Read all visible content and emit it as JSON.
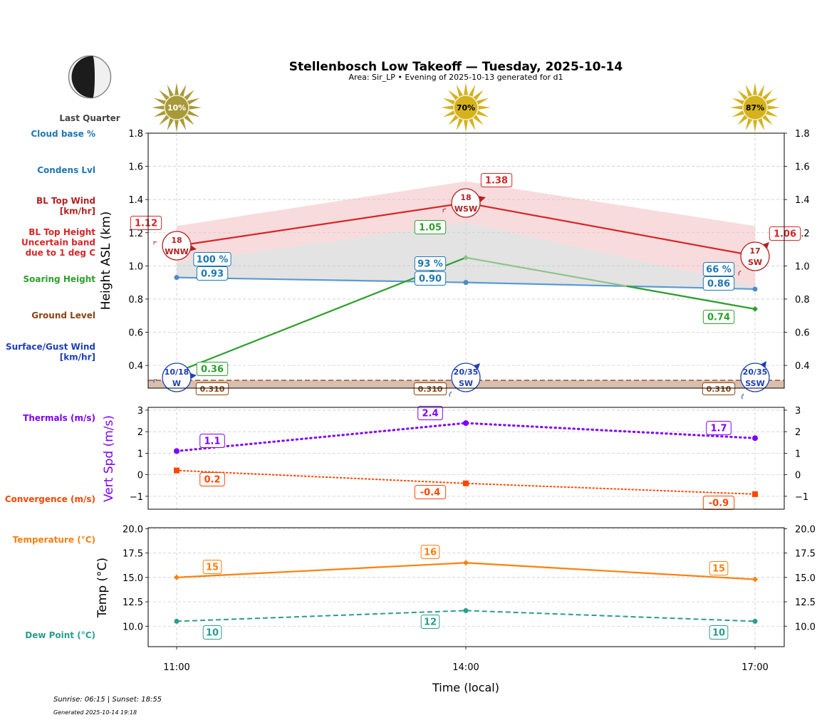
{
  "title": "Stellenbosch Low Takeoff — Tuesday, 2025-10-14",
  "subtitle": "Area: Sir_LP • Evening of 2025-10-13 generated for d1",
  "moon": {
    "phase": "Last Quarter",
    "icon": "moon-last-quarter-icon"
  },
  "footer": {
    "sun_times": "Sunrise: 06:15 | Sunset: 18:55",
    "generated": "Generated 2025-10-14 19:18"
  },
  "colors": {
    "cloud_base": "#1f77b4",
    "bl_top_wind": "#b22222",
    "bl_top_height": "#d62728",
    "soaring": "#2ca02c",
    "ground": "#8b4513",
    "surface_wind": "#1f3fb4",
    "thermals": "#7f00ff",
    "convergence": "#ff4500",
    "temperature": "#ff7f0e",
    "dew_point": "#2a9d8f"
  },
  "chart_data": [
    {
      "type": "line",
      "name": "height-panel",
      "ylabel": "Height ASL (km)",
      "ylim": [
        0.263,
        1.8
      ],
      "yticks": [
        "0.4",
        "0.6",
        "0.8",
        "1.0",
        "1.2",
        "1.4",
        "1.6",
        "1.8"
      ],
      "ytick_values": [
        0.4,
        0.6,
        0.8,
        1.0,
        1.2,
        1.4,
        1.6,
        1.8
      ],
      "grid": true,
      "x": [
        "11:00",
        "14:00",
        "17:00"
      ],
      "sun_percent": [
        "10%",
        "70%",
        "87%"
      ],
      "sun_values": [
        10,
        70,
        87
      ],
      "legend_labels": {
        "cloud_base": "Cloud base %",
        "condens": "Condens Lvl",
        "bl_top_wind": "BL Top Wind\n[km/hr]",
        "bl_top_wind_lines": [
          "BL Top Wind",
          "[km/hr]"
        ],
        "bl_top_height_lines": [
          "BL Top Height",
          "Uncertain band",
          "due to 1 deg C"
        ],
        "soaring": "Soaring Height",
        "ground": "Ground Level",
        "surface_wind_lines": [
          "Surface/Gust Wind",
          "[km/hr]"
        ]
      },
      "series": [
        {
          "name": "BL Top Height",
          "values": [
            1.12,
            1.38,
            1.06
          ],
          "labels": [
            "1.12",
            "1.38",
            "1.06"
          ],
          "band_upper": [
            1.24,
            1.51,
            1.24
          ],
          "band_lower": [
            1.02,
            1.26,
            0.88
          ]
        },
        {
          "name": "Condensation Level",
          "values": [
            0.93,
            0.9,
            0.86
          ],
          "labels": [
            "0.93",
            "0.90",
            "0.86"
          ],
          "cloud_pct": [
            "100 %",
            "93 %",
            "66 %"
          ]
        },
        {
          "name": "Soaring Height",
          "values": [
            0.36,
            1.05,
            0.74
          ],
          "labels": [
            "0.36",
            "1.05",
            "0.74"
          ]
        },
        {
          "name": "Ground Level",
          "values": [
            0.31,
            0.31,
            0.31
          ],
          "labels": [
            "0.310",
            "0.310",
            "0.310"
          ]
        }
      ],
      "bl_wind": [
        {
          "speed": "18",
          "dir": "WNW"
        },
        {
          "speed": "18",
          "dir": "WSW"
        },
        {
          "speed": "17",
          "dir": "SW"
        }
      ],
      "surface_wind": [
        {
          "speed": "10/18",
          "dir": "W"
        },
        {
          "speed": "20/35",
          "dir": "SW"
        },
        {
          "speed": "20/35",
          "dir": "SSW"
        }
      ]
    },
    {
      "type": "line",
      "name": "vert-speed-panel",
      "ylabel": "Vert Spd (m/s)",
      "ylim": [
        -1.6,
        3.13
      ],
      "yticks": [
        "−1",
        "0",
        "1",
        "2",
        "3"
      ],
      "ytick_values": [
        -1,
        0,
        1,
        2,
        3
      ],
      "grid": true,
      "x": [
        "11:00",
        "14:00",
        "17:00"
      ],
      "series": [
        {
          "name": "Thermals (m/s)",
          "values": [
            1.1,
            2.4,
            1.7
          ],
          "labels": [
            "1.1",
            "2.4",
            "1.7"
          ]
        },
        {
          "name": "Convergence (m/s)",
          "values": [
            0.2,
            -0.4,
            -0.9
          ],
          "labels": [
            "0.2",
            "-0.4",
            "-0.9"
          ]
        }
      ]
    },
    {
      "type": "line",
      "name": "temperature-panel",
      "ylabel": "Temp (°C)",
      "xlabel": "Time (local)",
      "ylim": [
        7.9,
        20.1
      ],
      "yticks": [
        "10.0",
        "12.5",
        "15.0",
        "17.5",
        "20.0"
      ],
      "ytick_values": [
        10,
        12.5,
        15,
        17.5,
        20
      ],
      "grid": true,
      "x": [
        "11:00",
        "14:00",
        "17:00"
      ],
      "series": [
        {
          "name": "Temperature (°C)",
          "values": [
            15.0,
            16.5,
            14.8
          ],
          "labels": [
            "15",
            "16",
            "15"
          ]
        },
        {
          "name": "Dew Point (°C)",
          "values": [
            10.5,
            11.6,
            10.5
          ],
          "labels": [
            "10",
            "12",
            "10"
          ]
        }
      ]
    }
  ]
}
